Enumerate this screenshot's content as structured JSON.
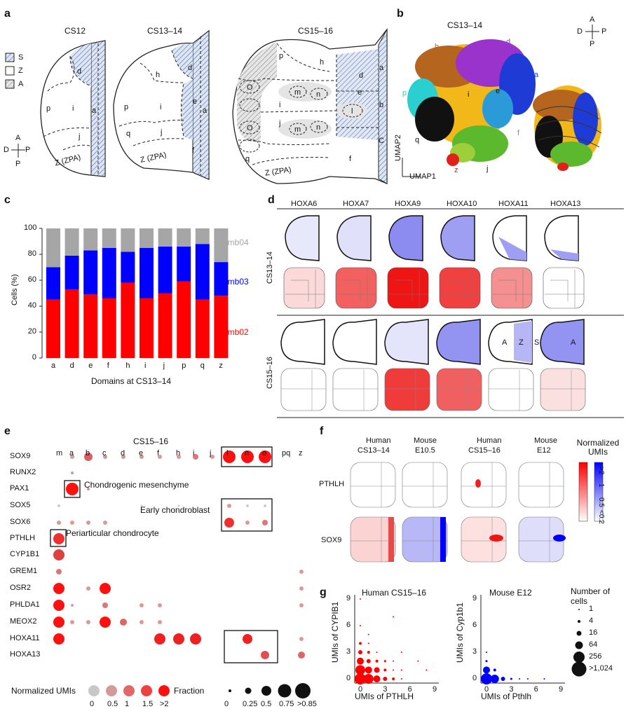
{
  "panel_letters": [
    "a",
    "b",
    "c",
    "d",
    "e",
    "f",
    "g"
  ],
  "panel_a": {
    "stages": [
      "CS12",
      "CS13–14",
      "CS15–16"
    ],
    "legend": [
      "S",
      "Z",
      "A"
    ],
    "compass": {
      "a": "A",
      "p": "P",
      "d": "D"
    },
    "domain_labels": {
      "cs12": [
        "d",
        "p",
        "i",
        "a",
        "j",
        "Z (ZPA)"
      ],
      "cs1314": [
        "h",
        "d",
        "p",
        "i",
        "e",
        "a",
        "q",
        "j",
        "f",
        "Z (ZPA)"
      ],
      "cs1516": [
        "p",
        "h",
        "d",
        "a",
        "O",
        "m",
        "n",
        "i",
        "e",
        "l",
        "b",
        "O",
        "j",
        "m",
        "n",
        "f",
        "q",
        "Z (ZPA)",
        "C"
      ]
    }
  },
  "panel_b": {
    "title": "CS13–14",
    "clusters": [
      {
        "label": "h",
        "color": "#b5651d"
      },
      {
        "label": "d",
        "color": "#9933cc"
      },
      {
        "label": "a",
        "color": "#1f3bd6"
      },
      {
        "label": "p",
        "color": "#2ad0d0"
      },
      {
        "label": "i",
        "color": "#f2b81a"
      },
      {
        "label": "e",
        "color": "#2a9bd6"
      },
      {
        "label": "q",
        "color": "#111111"
      },
      {
        "label": "f",
        "color": "#5cb82c"
      },
      {
        "label": "z",
        "color": "#e0201a"
      },
      {
        "label": "j",
        "color": "#6ac23a"
      }
    ],
    "xlabel": "UMAP1",
    "ylabel": "UMAP2",
    "compass": {
      "a": "A",
      "p": "P",
      "d": "D"
    }
  },
  "chart_data": {
    "type": "bar",
    "categories": [
      "a",
      "d",
      "e",
      "f",
      "h",
      "i",
      "j",
      "p",
      "q",
      "z"
    ],
    "series": [
      {
        "name": "emb02",
        "color": "#ff0000",
        "values": [
          45,
          53,
          49,
          46,
          58,
          46,
          50,
          59,
          45,
          48
        ]
      },
      {
        "name": "emb03",
        "color": "#0000ff",
        "values": [
          25,
          26,
          34,
          39,
          24,
          39,
          36,
          27,
          43,
          26
        ]
      },
      {
        "name": "emb04",
        "color": "#a6a6a6",
        "values": [
          30,
          21,
          17,
          15,
          18,
          15,
          14,
          14,
          12,
          26
        ]
      }
    ],
    "stacked": true,
    "xlabel": "Domains at CS13–14",
    "ylabel": "Cells (%)",
    "ylim": [
      0,
      100
    ],
    "yticks": [
      "0",
      "20",
      "40",
      "60",
      "80",
      "100"
    ]
  },
  "panel_d": {
    "genes": [
      "HOXA6",
      "HOXA7",
      "HOXA9",
      "HOXA10",
      "HOXA11",
      "HOXA13"
    ],
    "rows": [
      "CS13–14",
      "CS15–16"
    ],
    "az_labels": [
      "A",
      "Z",
      "S",
      "A"
    ]
  },
  "panel_e": {
    "title": "CS15–16",
    "columns": [
      "m",
      "a",
      "b",
      "c",
      "d",
      "e",
      "f",
      "h",
      "i",
      "j",
      "l",
      "n",
      "o",
      "pq",
      "z"
    ],
    "genes": [
      "SOX9",
      "RUNX2",
      "PAX1",
      "SOX5",
      "SOX6",
      "PTHLH",
      "CYP1B1",
      "GREM1",
      "OSR2",
      "PHLDA1",
      "MEOX2",
      "HOXA11",
      "HOXA13"
    ],
    "annotations": [
      "Chondrogenic mesenchyme",
      "Early chondroblast",
      "Periarticular chondrocyte"
    ],
    "legend_norm_title": "Normalized UMIs",
    "legend_norm": [
      "0",
      "0.5",
      "1",
      "1.5",
      ">2"
    ],
    "legend_frac_title": "Fraction",
    "legend_frac": [
      "0",
      "0.25",
      "0.5",
      "0.75",
      ">0.85"
    ]
  },
  "panel_f": {
    "headers": [
      "Human",
      "CS13–14",
      "Mouse",
      "E10.5",
      "Human",
      "CS15–16",
      "Mouse",
      "E12"
    ],
    "genes": [
      "PTHLH",
      "SOX9"
    ],
    "colorbar_title": "Normalized UMIs",
    "colorbar_ticks": [
      ">2",
      "1",
      "0.5",
      "<0.2"
    ]
  },
  "panel_g": {
    "left": {
      "title": "Human CS15–16",
      "xlabel": "UMIs of PTHLH",
      "ylabel": "UMIs of CYPIB1",
      "ticks": [
        "0",
        "3",
        "6",
        "9"
      ]
    },
    "right": {
      "title": "Mouse E12",
      "xlabel": "UMIs of Pthlh",
      "ylabel": "UMIs of Cyp1b1",
      "ticks": [
        "0",
        "3",
        "6",
        "9"
      ]
    },
    "legend_title": "Number of cells",
    "legend": [
      "1",
      "4",
      "16",
      "64",
      "256",
      ">1,024"
    ]
  }
}
